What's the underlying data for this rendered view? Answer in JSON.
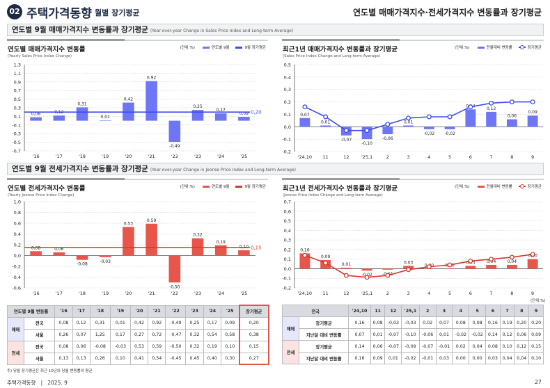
{
  "header": {
    "badge": "02",
    "title": "주택가격동향",
    "subtitle": "월별 장기평균",
    "right_title": "연도별 매매가격지수·전세가격지수 변동률과 장기평균"
  },
  "sections": [
    {
      "title": "연도별 9월 매매가격지수 변동률과 장기평균",
      "title_en": "(Year-over-year Change in Sales Price Index and Long-term Average)"
    },
    {
      "title": "연도별 9월 전세가격지수 변동률과 장기평균",
      "title_en": "(Year-over-year Change in Jeonse Price Index and Long-term Average)"
    }
  ],
  "colors": {
    "sale_bar": "#6f76f6",
    "sale_line": "#3b4cf0",
    "jeonse_bar": "#e8564b",
    "jeonse_line": "#d9362a"
  },
  "chart_data": [
    {
      "type": "bar",
      "title": "연도별 매매가격지수 변동률",
      "subtitle": "(Yearly Sales Price Index Change)",
      "unit": "(단위:%)",
      "legend": [
        "연도별 9월",
        "9월 장기평균"
      ],
      "categories": [
        "'16",
        "'17",
        "'18",
        "'19",
        "'20",
        "'21",
        "'22",
        "'23",
        "'24",
        "'25"
      ],
      "values": [
        0.08,
        0.12,
        0.31,
        0.01,
        0.42,
        0.92,
        -0.49,
        0.25,
        0.17,
        0.09
      ],
      "labels": [
        "0,08",
        "0,12",
        "0,31",
        "0,01",
        "0,42",
        "0,92",
        "-0,49",
        "0,25",
        "0,17",
        "0,09"
      ],
      "average": 0.2,
      "average_label": "0,20",
      "ylim": [
        -0.7,
        1.3
      ],
      "ystep": 0.2,
      "grid": true,
      "legend_position": "top-right"
    },
    {
      "type": "bar+line",
      "title": "최근1년 매매가격지수 변동률과 장기평균",
      "subtitle": "(Sales Price Index Change and Long-term Average)",
      "unit": "(단위:%)",
      "legend": [
        "전월대비 변동률",
        "장기평균"
      ],
      "categories": [
        "'24,10",
        "11",
        "12",
        "'25,1",
        "2",
        "3",
        "4",
        "5",
        "6",
        "7",
        "8",
        "9"
      ],
      "values": [
        0.07,
        0.01,
        -0.07,
        -0.1,
        -0.06,
        0.01,
        -0.02,
        -0.02,
        0.14,
        0.12,
        0.06,
        0.09
      ],
      "labels": [
        "0,07",
        "0,01",
        "-0,07",
        "-0,10",
        "-0,06",
        "0,01",
        "-0,02",
        "-0,02",
        "0,14",
        "0,12",
        "0,06",
        "0,09"
      ],
      "line": [
        0.16,
        0.08,
        -0.03,
        -0.03,
        0.02,
        0.07,
        0.08,
        0.08,
        0.16,
        0.19,
        0.2,
        0.2
      ],
      "ylim": [
        -0.2,
        0.5
      ],
      "ystep": 0.1,
      "grid": true,
      "legend_position": "top-right"
    },
    {
      "type": "bar",
      "title": "연도별 전세가격지수 변동률",
      "subtitle": "(Yearly Jeonse Price Index Change)",
      "unit": "(단위:%)",
      "legend": [
        "연도별 9월",
        "9월 장기평균"
      ],
      "categories": [
        "'16",
        "'17",
        "'18",
        "'19",
        "'20",
        "'21",
        "'22",
        "'23",
        "'24",
        "'25"
      ],
      "values": [
        0.08,
        0.06,
        -0.08,
        -0.03,
        0.53,
        0.59,
        -0.5,
        0.32,
        0.19,
        0.1
      ],
      "labels": [
        "0,08",
        "0,06",
        "-0,08",
        "-0,03",
        "0,53",
        "0,59",
        "-0,50",
        "0,32",
        "0,19",
        "0,10"
      ],
      "average": 0.15,
      "average_label": "0,15",
      "ylim": [
        -0.6,
        1.0
      ],
      "ystep": 0.2,
      "grid": true,
      "legend_position": "top-right"
    },
    {
      "type": "bar+line",
      "title": "최근1년 전세가격지수 변동률과 장기평균",
      "subtitle": "(Jeonse Price Index Change and Long-term Average)",
      "unit": "(단위:%)",
      "legend": [
        "전월대비 변동률",
        "장기평균"
      ],
      "categories": [
        "'24,10",
        "11",
        "12",
        "'25,1",
        "2",
        "3",
        "4",
        "5",
        "6",
        "7",
        "8",
        "9"
      ],
      "values": [
        0.16,
        0.09,
        0.01,
        -0.02,
        -0.01,
        0.03,
        0.0,
        0.0,
        0.03,
        0.04,
        0.04,
        0.1
      ],
      "labels": [
        "0,16",
        "0,09",
        "0,01",
        "-0,02",
        "-0,01",
        "0,03",
        "0,00",
        "0,00",
        "0,03",
        "0,04",
        "0,04",
        "0,10"
      ],
      "line": [
        0.14,
        0.06,
        -0.07,
        -0.09,
        -0.07,
        -0.01,
        0.02,
        0.04,
        0.08,
        0.1,
        0.12,
        0.15
      ],
      "ylim": [
        -0.2,
        0.7
      ],
      "ystep": 0.1,
      "grid": true,
      "legend_position": "top-right"
    }
  ],
  "table_left": {
    "corner": "연도별 9월 변동률",
    "columns": [
      "'16",
      "'17",
      "'18",
      "'19",
      "'20",
      "'21",
      "'22",
      "'23",
      "'24",
      "'25",
      "장기평균"
    ],
    "groups": [
      {
        "name": "매매",
        "rows": [
          {
            "label": "전국",
            "values": [
              "0,08",
              "0,12",
              "0,31",
              "0,01",
              "0,42",
              "0,92",
              "-0,49",
              "0,25",
              "0,17",
              "0,09",
              "0,20"
            ]
          },
          {
            "label": "서울",
            "values": [
              "0,26",
              "0,07",
              "1,25",
              "0,17",
              "0,27",
              "0,72",
              "-0,47",
              "0,32",
              "0,54",
              "0,58",
              "0,38"
            ]
          }
        ]
      },
      {
        "name": "전세",
        "rows": [
          {
            "label": "전국",
            "values": [
              "0,08",
              "0,06",
              "-0,08",
              "-0,03",
              "0,53",
              "0,59",
              "-0,50",
              "0,32",
              "0,19",
              "0,10",
              "0,15"
            ]
          },
          {
            "label": "서울",
            "values": [
              "0,13",
              "0,13",
              "0,26",
              "0,10",
              "0,41",
              "0,54",
              "-0,45",
              "0,45",
              "0,40",
              "0,30",
              "0,27"
            ]
          }
        ]
      }
    ]
  },
  "table_right": {
    "unit": "(단위:%)",
    "corner": "전국",
    "columns": [
      "'24,10",
      "11",
      "12",
      "'25,1",
      "2",
      "3",
      "4",
      "5",
      "6",
      "7",
      "8",
      "9"
    ],
    "groups": [
      {
        "name": "매매",
        "rows": [
          {
            "label": "장기평균",
            "values": [
              "0,16",
              "0,08",
              "-0,03",
              "-0,03",
              "0,02",
              "0,07",
              "0,08",
              "0,08",
              "0,16",
              "0,19",
              "0,20",
              "0,20"
            ]
          },
          {
            "label": "지난달 대비 변동률",
            "values": [
              "0,07",
              "0,01",
              "-0,07",
              "-0,10",
              "-0,06",
              "0,01",
              "-0,02",
              "-0,02",
              "0,14",
              "0,12",
              "0,06",
              "0,09"
            ]
          }
        ]
      },
      {
        "name": "전세",
        "rows": [
          {
            "label": "장기평균",
            "values": [
              "0,14",
              "0,06",
              "-0,07",
              "-0,09",
              "-0,07",
              "-0,01",
              "0,02",
              "0,04",
              "0,08",
              "0,10",
              "0,12",
              "0,15"
            ]
          },
          {
            "label": "지난달 대비 변동률",
            "values": [
              "0,16",
              "0,09",
              "0,01",
              "-0,02",
              "-0,01",
              "0,03",
              "0,00",
              "0,00",
              "0,03",
              "0,04",
              "0,04",
              "0,10"
            ]
          }
        ]
      }
    ]
  },
  "note": "주) 당월 장기평균은 최근 10년의 당월 변동률의 평균",
  "footer": {
    "publication": "주택가격동향",
    "separator": "|",
    "date": "2025. 9",
    "page": "27"
  }
}
